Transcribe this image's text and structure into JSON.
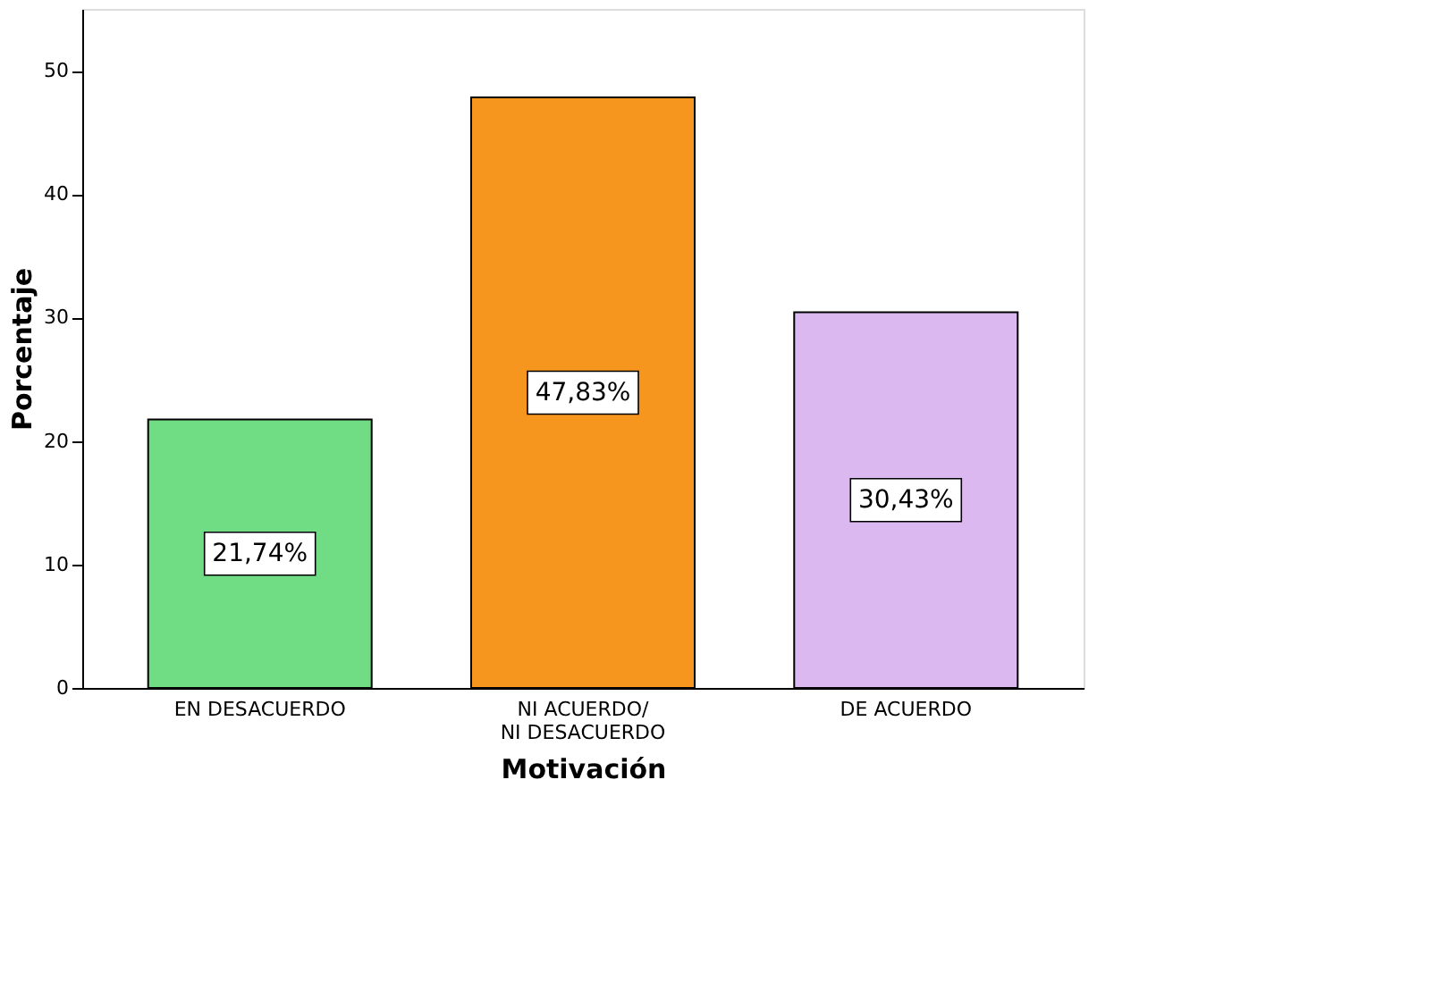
{
  "chart_data": {
    "type": "bar",
    "xlabel": "Motivación",
    "ylabel": "Porcentaje",
    "categories": [
      "EN DESACUERDO",
      "NI ACUERDO/ NI DESACUERDO",
      "DE ACUERDO"
    ],
    "values": [
      21.74,
      47.83,
      30.43
    ],
    "colors": [
      "#70dc84",
      "#f7961e",
      "#dcb8f0"
    ],
    "value_labels": [
      "21,74%",
      "47,83%",
      "30,43%"
    ],
    "ylim": [
      0,
      55
    ],
    "yticks": [
      0,
      10,
      20,
      30,
      40,
      50
    ],
    "grid": false,
    "legend": false
  }
}
